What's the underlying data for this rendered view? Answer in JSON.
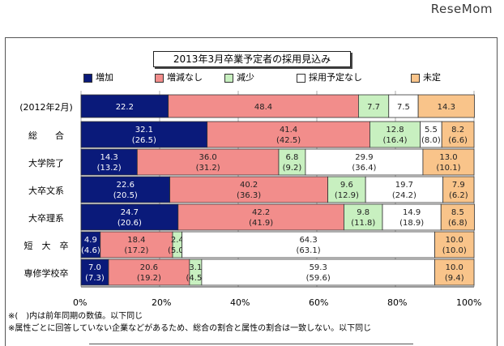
{
  "brand": "ReseMom",
  "chart_data": {
    "type": "bar",
    "orientation": "horizontal-stacked-100",
    "title": "2013年3月卒業予定者の採用見込み",
    "categories": [
      "(2012年2月)",
      "総　　合",
      "大学院了",
      "大卒文系",
      "大卒理系",
      "短　大　卒",
      "専修学校卒"
    ],
    "series": [
      {
        "name": "増加",
        "color": "#0a1a7a",
        "values": [
          22.2,
          32.1,
          14.3,
          22.6,
          24.7,
          4.9,
          7.0
        ],
        "labels": [
          "22.2",
          "32.1",
          "14.3",
          "22.6",
          "24.7",
          "4.9",
          "7.0"
        ],
        "prev": [
          "",
          "(26.5)",
          "(13.2)",
          "(20.5)",
          "(20.6)",
          "(4.6)",
          "(7.3)"
        ]
      },
      {
        "name": "増減なし",
        "color": "#f28d8b",
        "values": [
          48.4,
          41.4,
          36.0,
          40.2,
          42.2,
          18.4,
          20.6
        ],
        "labels": [
          "48.4",
          "41.4",
          "36.0",
          "40.2",
          "42.2",
          "18.4",
          "20.6"
        ],
        "prev": [
          "",
          "(42.5)",
          "(31.2)",
          "(36.3)",
          "(41.9)",
          "(17.2)",
          "(19.2)"
        ]
      },
      {
        "name": "減少",
        "color": "#c8f0c0",
        "values": [
          7.7,
          12.8,
          6.8,
          9.6,
          9.8,
          2.4,
          3.1
        ],
        "labels": [
          "7.7",
          "12.8",
          "6.8",
          "9.6",
          "9.8",
          "2.4",
          "3.1"
        ],
        "prev": [
          "",
          "(16.4)",
          "(9.2)",
          "(12.9)",
          "(11.8)",
          "(5.0)",
          "(4.5)"
        ]
      },
      {
        "name": "採用予定なし",
        "color": "#ffffff",
        "values": [
          7.5,
          5.5,
          29.9,
          19.7,
          14.9,
          64.3,
          59.3
        ],
        "labels": [
          "7.5",
          "5.5",
          "29.9",
          "19.7",
          "14.9",
          "64.3",
          "59.3"
        ],
        "prev": [
          "",
          "(8.0)",
          "(36.4)",
          "(24.2)",
          "(18.9)",
          "(63.1)",
          "(59.6)"
        ]
      },
      {
        "name": "未定",
        "color": "#f9c48a",
        "values": [
          14.3,
          8.2,
          13.0,
          7.9,
          8.5,
          10.0,
          10.0
        ],
        "labels": [
          "14.3",
          "8.2",
          "13.0",
          "7.9",
          "8.5",
          "10.0",
          "10.0"
        ],
        "prev": [
          "",
          "(6.6)",
          "(10.1)",
          "(6.2)",
          "(6.8)",
          "(10.0)",
          "(9.4)"
        ]
      }
    ],
    "xlim": [
      0,
      100
    ],
    "x_ticks": [
      "0%",
      "20%",
      "40%",
      "60%",
      "80%",
      "100%"
    ],
    "grid": true,
    "legend_position": "top"
  },
  "footnotes": [
    "※(　)内は前年同期の数値。以下同じ",
    "※属性ごとに回答していない企業などがあるため、総合の割合と属性の割合は一致しない。以下同じ"
  ]
}
